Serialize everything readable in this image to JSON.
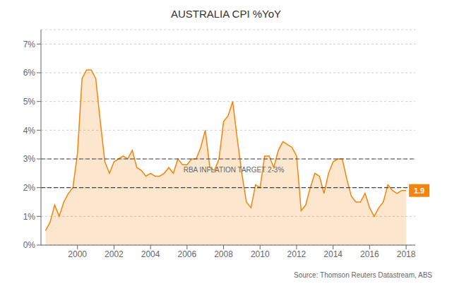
{
  "chart_data": {
    "type": "area",
    "title": "AUSTRALIA CPI %YoY",
    "color": "#F5840C",
    "grid": true,
    "xlim": [
      1998.0,
      2018.5
    ],
    "xticks": [
      2000,
      2002,
      2004,
      2006,
      2008,
      2010,
      2012,
      2014,
      2016,
      2018
    ],
    "ylim": [
      0,
      7.5
    ],
    "yticks": [
      {
        "value": 0,
        "label": "0%"
      },
      {
        "value": 1,
        "label": "1%"
      },
      {
        "value": 2,
        "label": "2%"
      },
      {
        "value": 3,
        "label": "3%"
      },
      {
        "value": 4,
        "label": "4%"
      },
      {
        "value": 5,
        "label": "5%"
      },
      {
        "value": 6,
        "label": "6%"
      },
      {
        "value": 7,
        "label": "7%"
      }
    ],
    "reference_lines": [
      2.0,
      3.0
    ],
    "annotations": [
      {
        "text": "RBA INFLATION TARGET 2-3%",
        "x": 2005.8,
        "y": 2.48
      },
      {
        "text": "1.9",
        "x": 2018.0,
        "y": 1.9
      },
      {
        "text": "Source: Thomson Reuters Datastream, ABS"
      }
    ],
    "x": [
      1998.25,
      1998.5,
      1998.75,
      1999.0,
      1999.25,
      1999.5,
      1999.75,
      2000.0,
      2000.25,
      2000.5,
      2000.75,
      2001.0,
      2001.25,
      2001.5,
      2001.75,
      2002.0,
      2002.25,
      2002.5,
      2002.75,
      2003.0,
      2003.25,
      2003.5,
      2003.75,
      2004.0,
      2004.25,
      2004.5,
      2004.75,
      2005.0,
      2005.25,
      2005.5,
      2005.75,
      2006.0,
      2006.25,
      2006.5,
      2006.75,
      2007.0,
      2007.25,
      2007.5,
      2007.75,
      2008.0,
      2008.25,
      2008.5,
      2008.75,
      2009.0,
      2009.25,
      2009.5,
      2009.75,
      2010.0,
      2010.25,
      2010.5,
      2010.75,
      2011.0,
      2011.25,
      2011.5,
      2011.75,
      2012.0,
      2012.25,
      2012.5,
      2012.75,
      2013.0,
      2013.25,
      2013.5,
      2013.75,
      2014.0,
      2014.25,
      2014.5,
      2014.75,
      2015.0,
      2015.25,
      2015.5,
      2015.75,
      2016.0,
      2016.25,
      2016.5,
      2016.75,
      2017.0,
      2017.25,
      2017.5,
      2017.75,
      2018.0
    ],
    "values": [
      0.5,
      0.8,
      1.4,
      1.0,
      1.5,
      1.8,
      2.0,
      3.2,
      5.8,
      6.1,
      6.1,
      5.8,
      4.3,
      2.9,
      2.5,
      2.9,
      3.0,
      3.1,
      3.0,
      3.3,
      2.7,
      2.6,
      2.4,
      2.5,
      2.4,
      2.4,
      2.5,
      2.7,
      2.5,
      3.0,
      2.8,
      2.8,
      3.0,
      3.0,
      3.4,
      4.0,
      2.7,
      2.6,
      3.0,
      4.3,
      4.5,
      5.0,
      3.7,
      2.5,
      1.5,
      1.3,
      2.1,
      2.0,
      3.1,
      3.1,
      2.7,
      3.3,
      3.6,
      3.5,
      3.4,
      3.1,
      1.2,
      1.4,
      2.0,
      2.5,
      2.4,
      1.8,
      2.5,
      2.9,
      3.0,
      3.0,
      2.3,
      1.7,
      1.5,
      1.5,
      1.8,
      1.3,
      1.0,
      1.3,
      1.5,
      2.1,
      1.9,
      1.8,
      1.9,
      1.9
    ]
  }
}
